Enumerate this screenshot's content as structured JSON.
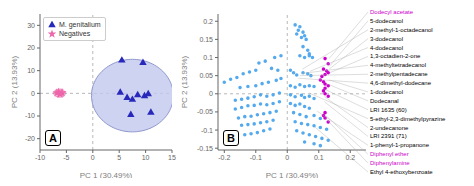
{
  "chart_data": [
    {
      "type": "scatter",
      "panel_label": "A",
      "x_label": "PC 1 (30.49%)",
      "y_label": "PC 2 (13.93%)",
      "xlim": [
        -10,
        15
      ],
      "ylim": [
        -25,
        35
      ],
      "xticks": [
        -10,
        -5,
        0,
        5,
        10,
        15
      ],
      "yticks": [
        -20,
        -10,
        0,
        10,
        20,
        30
      ],
      "legend": "upper left",
      "crosshair": {
        "x": 0,
        "y": 0
      },
      "ellipses": [
        {
          "center": [
            7.5,
            -1.0
          ],
          "width": 15.5,
          "height": 32.0,
          "color": "#c0c8ee",
          "edge_color": "#9098cc"
        },
        {
          "center": [
            -6.3,
            0.1
          ],
          "width": 2.2,
          "height": 3.5,
          "edge_color": "#ee66aa"
        }
      ],
      "series": [
        {
          "name": "M. genitalium",
          "color": "#2828bb",
          "marker": "triangle",
          "values": [
            [
              5.5,
              14.5
            ],
            [
              9.5,
              13.5
            ],
            [
              5.2,
              0.3
            ],
            [
              6.5,
              -2.0
            ],
            [
              7.5,
              -2.8
            ],
            [
              8.5,
              -0.8
            ],
            [
              9.8,
              -1.2
            ],
            [
              10.5,
              -0.3
            ],
            [
              7.2,
              -9.5
            ],
            [
              11.0,
              -8.5
            ]
          ]
        },
        {
          "name": "Negatives",
          "color": "#ee66aa",
          "marker": "star",
          "values": [
            [
              -6.5,
              0.5
            ],
            [
              -6.0,
              0.1
            ],
            [
              -6.2,
              -0.4
            ],
            [
              -5.8,
              0.3
            ],
            [
              -6.8,
              0.2
            ],
            [
              -6.3,
              -0.1
            ]
          ]
        }
      ]
    },
    {
      "type": "scatter",
      "panel_label": "B",
      "x_label": "PC 1 (30.49%)",
      "y_label": "PC 2 (13.93%)",
      "xlim": [
        -0.22,
        0.25
      ],
      "ylim": [
        -0.155,
        0.22
      ],
      "xticks": [
        -0.2,
        -0.1,
        0,
        0.1,
        0.2
      ],
      "yticks": [
        -0.15,
        -0.1,
        -0.05,
        0,
        0.05,
        0.1,
        0.15,
        0.2
      ],
      "crosshair": {
        "x": 0,
        "y": 0
      },
      "series": [
        {
          "color": "#55aaee",
          "marker": "circle",
          "values": [
            [
              0.025,
              0.19
            ],
            [
              0.04,
              0.185
            ],
            [
              0.035,
              0.175
            ],
            [
              0.03,
              0.165
            ],
            [
              0.05,
              0.17
            ],
            [
              0.055,
              0.16
            ],
            [
              0.06,
              0.15
            ],
            [
              0.045,
              0.155
            ],
            [
              0.05,
              0.13
            ],
            [
              0.065,
              0.12
            ],
            [
              0.07,
              0.11
            ],
            [
              0.04,
              0.105
            ],
            [
              0.055,
              0.1
            ],
            [
              0.07,
              0.105
            ],
            [
              0.08,
              0.1
            ],
            [
              -0.02,
              0.105
            ],
            [
              -0.04,
              0.1
            ],
            [
              -0.07,
              0.09
            ],
            [
              -0.09,
              0.085
            ],
            [
              -0.05,
              0.07
            ],
            [
              -0.03,
              0.065
            ],
            [
              -0.1,
              0.065
            ],
            [
              -0.12,
              0.06
            ],
            [
              -0.14,
              0.055
            ],
            [
              -0.16,
              0.045
            ],
            [
              -0.18,
              0.04
            ],
            [
              -0.2,
              0.032
            ],
            [
              0.01,
              0.065
            ],
            [
              0.02,
              0.058
            ],
            [
              0.03,
              0.052
            ],
            [
              0.05,
              0.058
            ],
            [
              0.065,
              0.055
            ],
            [
              0.075,
              0.05
            ],
            [
              -0.02,
              0.042
            ],
            [
              -0.035,
              0.037
            ],
            [
              -0.06,
              0.032
            ],
            [
              -0.08,
              0.028
            ],
            [
              -0.1,
              0.022
            ],
            [
              -0.125,
              0.02
            ],
            [
              -0.15,
              0.017
            ],
            [
              0.01,
              0.022
            ],
            [
              0.025,
              0.018
            ],
            [
              0.04,
              0.025
            ],
            [
              0.055,
              0.02
            ],
            [
              0.07,
              0.022
            ],
            [
              0.085,
              0.02
            ],
            [
              -0.025,
              0.002
            ],
            [
              -0.045,
              -0.003
            ],
            [
              -0.065,
              -0.007
            ],
            [
              -0.085,
              -0.003
            ],
            [
              -0.105,
              -0.008
            ],
            [
              -0.125,
              -0.012
            ],
            [
              -0.145,
              -0.015
            ],
            [
              -0.165,
              -0.018
            ],
            [
              0.01,
              -0.003
            ],
            [
              0.025,
              -0.008
            ],
            [
              0.045,
              -0.004
            ],
            [
              0.055,
              -0.01
            ],
            [
              0.07,
              -0.007
            ],
            [
              0.085,
              -0.013
            ],
            [
              -0.025,
              -0.022
            ],
            [
              -0.045,
              -0.027
            ],
            [
              -0.065,
              -0.03
            ],
            [
              -0.085,
              -0.028
            ],
            [
              -0.105,
              -0.032
            ],
            [
              -0.125,
              -0.033
            ],
            [
              -0.145,
              -0.038
            ],
            [
              -0.165,
              -0.042
            ],
            [
              0.01,
              -0.027
            ],
            [
              0.025,
              -0.032
            ],
            [
              0.04,
              -0.028
            ],
            [
              0.055,
              -0.035
            ],
            [
              0.07,
              -0.04
            ],
            [
              -0.035,
              -0.048
            ],
            [
              -0.055,
              -0.052
            ],
            [
              -0.075,
              -0.055
            ],
            [
              -0.095,
              -0.058
            ],
            [
              -0.115,
              -0.062
            ],
            [
              -0.135,
              -0.063
            ],
            [
              -0.155,
              -0.067
            ],
            [
              0.02,
              -0.052
            ],
            [
              0.04,
              -0.057
            ],
            [
              0.06,
              -0.063
            ],
            [
              0.085,
              -0.06
            ],
            [
              0.105,
              -0.068
            ],
            [
              -0.045,
              -0.073
            ],
            [
              -0.065,
              -0.077
            ],
            [
              -0.085,
              -0.08
            ],
            [
              -0.105,
              -0.083
            ],
            [
              -0.125,
              -0.085
            ],
            [
              -0.145,
              -0.087
            ],
            [
              0.025,
              -0.077
            ],
            [
              0.045,
              -0.082
            ],
            [
              0.065,
              -0.085
            ],
            [
              0.085,
              -0.088
            ],
            [
              0.105,
              -0.093
            ],
            [
              0.125,
              -0.098
            ],
            [
              -0.055,
              -0.097
            ],
            [
              -0.075,
              -0.102
            ],
            [
              -0.095,
              -0.107
            ],
            [
              -0.115,
              -0.11
            ],
            [
              -0.135,
              -0.113
            ],
            [
              0.03,
              -0.102
            ],
            [
              0.05,
              -0.108
            ],
            [
              0.07,
              -0.113
            ],
            [
              0.09,
              -0.118
            ],
            [
              0.11,
              -0.123
            ],
            [
              0.13,
              -0.128
            ],
            [
              0.055,
              -0.133
            ],
            [
              0.085,
              -0.138
            ],
            [
              0.105,
              -0.143
            ]
          ]
        },
        {
          "color": "#cc00cc",
          "marker": "circle",
          "values": [
            [
              0.12,
              0.097
            ],
            [
              0.13,
              0.083
            ],
            [
              0.115,
              0.068
            ],
            [
              0.125,
              0.063
            ],
            [
              0.13,
              0.058
            ],
            [
              0.12,
              0.053
            ],
            [
              0.11,
              0.048
            ],
            [
              0.105,
              0.038
            ],
            [
              0.115,
              0.033
            ],
            [
              0.12,
              0.027
            ],
            [
              0.13,
              0.022
            ],
            [
              0.12,
              0.015
            ],
            [
              0.115,
              0.008
            ],
            [
              0.12,
              0.0
            ],
            [
              0.13,
              -0.007
            ],
            [
              0.12,
              -0.052
            ],
            [
              0.115,
              -0.06
            ],
            [
              0.12,
              -0.067
            ],
            [
              0.13,
              -0.078
            ]
          ]
        }
      ],
      "annotations": [
        {
          "text": "Dodecyl acetate",
          "x": 0.133,
          "y": 0.097,
          "color": "#cc00cc"
        },
        {
          "text": "5-dodecanol",
          "x": 0.133,
          "y": 0.075,
          "color": "black"
        },
        {
          "text": "3-dodecanol",
          "x": 0.133,
          "y": 0.068,
          "color": "black"
        },
        {
          "text": "2-methyl-1-octadecanol",
          "x": 0.048,
          "y": 0.068,
          "color": "black"
        },
        {
          "text": "4-dodecanol",
          "x": 0.072,
          "y": 0.062,
          "color": "black"
        },
        {
          "text": "4-methyltetradecanol",
          "x": 0.045,
          "y": 0.056,
          "color": "black"
        },
        {
          "text": "2-methylpentadecane",
          "x": 0.04,
          "y": 0.05,
          "color": "black"
        },
        {
          "text": "1,3-octadien-2-one",
          "x": 0.135,
          "y": 0.058,
          "color": "black"
        },
        {
          "text": "4,6-dimethyl-dodecane",
          "x": 0.035,
          "y": 0.043,
          "color": "black"
        },
        {
          "text": "1-dodecanol",
          "x": 0.133,
          "y": 0.038,
          "color": "black"
        },
        {
          "text": "Dodecanal",
          "x": 0.125,
          "y": 0.028,
          "color": "black"
        },
        {
          "text": "LRI 1635 (60)",
          "x": 0.118,
          "y": 0.013,
          "color": "black"
        },
        {
          "text": "5-ethyl-2,3-dimethylpyrazine",
          "x": 0.07,
          "y": 0.002,
          "color": "black"
        },
        {
          "text": "2-undecanone",
          "x": 0.118,
          "y": -0.008,
          "color": "black"
        },
        {
          "text": "LRI 2391 (71)",
          "x": 0.118,
          "y": -0.022,
          "color": "black"
        },
        {
          "text": "1-phenyl-1-propanone",
          "x": 0.095,
          "y": -0.048,
          "color": "black"
        },
        {
          "text": "Diphenyl ether",
          "x": 0.122,
          "y": -0.06,
          "color": "#cc00cc"
        },
        {
          "text": "Diphenylamine",
          "x": 0.122,
          "y": -0.068,
          "color": "#cc00cc"
        },
        {
          "text": "Ethyl 4-ethoxybenzoate",
          "x": 0.088,
          "y": -0.092,
          "color": "black"
        }
      ]
    }
  ]
}
